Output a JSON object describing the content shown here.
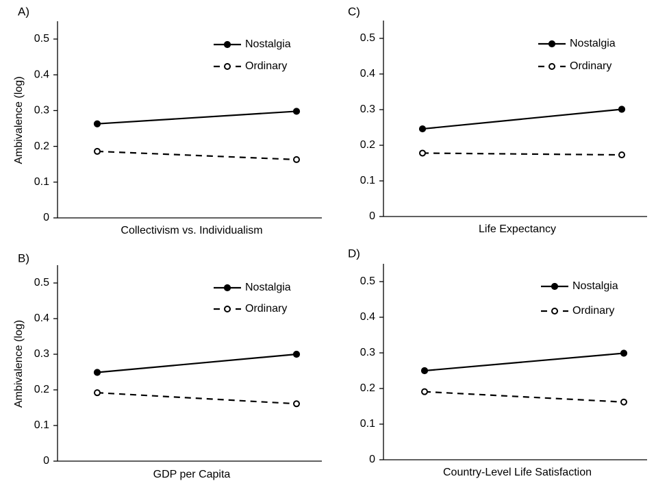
{
  "chart_data": [
    {
      "type": "line",
      "panel_label": "A)",
      "xlabel": "Collectivism vs. Individualism",
      "ylabel": "Ambivalence  (log)",
      "ylim": [
        0,
        0.5
      ],
      "yticks": [
        "0",
        "0.1",
        "0.2",
        "0.3",
        "0.4",
        "0.5"
      ],
      "legend_position": "top-right",
      "grid": false,
      "series": [
        {
          "name": "Nostalgia",
          "values": [
            0.263,
            0.298
          ]
        },
        {
          "name": "Ordinary",
          "values": [
            0.186,
            0.163
          ]
        }
      ]
    },
    {
      "type": "line",
      "panel_label": "B)",
      "xlabel": "GDP per Capita",
      "ylabel": "Ambivalence  (log)",
      "ylim": [
        0,
        0.5
      ],
      "yticks": [
        "0",
        "0.1",
        "0.2",
        "0.3",
        "0.4",
        "0.5"
      ],
      "legend_position": "top-right",
      "grid": false,
      "series": [
        {
          "name": "Nostalgia",
          "values": [
            0.249,
            0.3
          ]
        },
        {
          "name": "Ordinary",
          "values": [
            0.192,
            0.161
          ]
        }
      ]
    },
    {
      "type": "line",
      "panel_label": "C)",
      "xlabel": "Life Expectancy",
      "ylabel": "",
      "ylim": [
        0,
        0.5
      ],
      "yticks": [
        "0",
        "0.1",
        "0.2",
        "0.3",
        "0.4",
        "0.5"
      ],
      "legend_position": "top-right",
      "grid": false,
      "series": [
        {
          "name": "Nostalgia",
          "values": [
            0.246,
            0.301
          ]
        },
        {
          "name": "Ordinary",
          "values": [
            0.178,
            0.173
          ]
        }
      ]
    },
    {
      "type": "line",
      "panel_label": "D)",
      "xlabel": "Country-Level Life Satisfaction",
      "ylabel": "",
      "ylim": [
        0,
        0.5
      ],
      "yticks": [
        "0",
        "0.1",
        "0.2",
        "0.3",
        "0.4",
        "0.5"
      ],
      "legend_position": "top-right",
      "grid": false,
      "series": [
        {
          "name": "Nostalgia",
          "values": [
            0.25,
            0.299
          ]
        },
        {
          "name": "Ordinary",
          "values": [
            0.191,
            0.162
          ]
        }
      ]
    }
  ],
  "style": {
    "line_color": "#000000",
    "background": "#ffffff"
  }
}
